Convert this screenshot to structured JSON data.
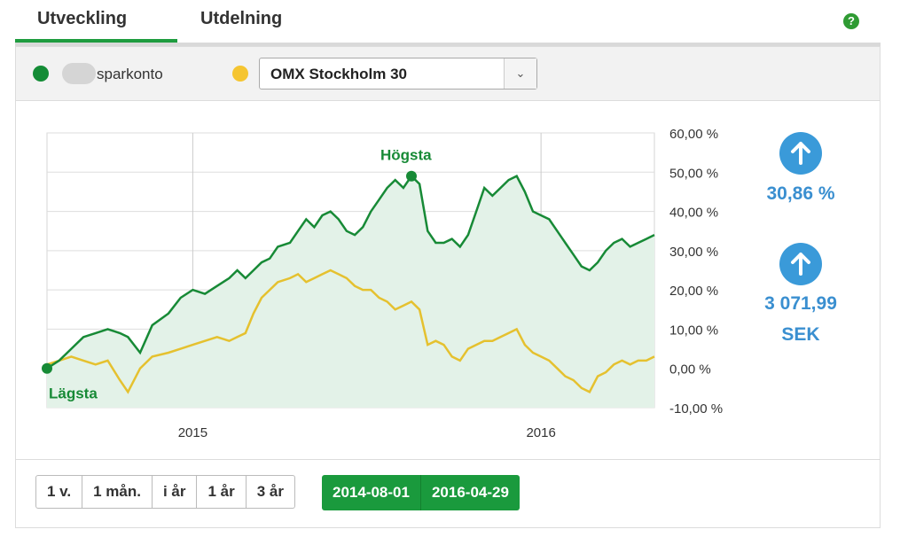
{
  "tabs": [
    {
      "label": "Utveckling",
      "active": true
    },
    {
      "label": "Utdelning",
      "active": false
    }
  ],
  "help_icon": "question-icon",
  "legend": {
    "account_label": "sparkonto",
    "account_color": "#148c36",
    "index_color": "#f5c531",
    "index_select_value": "OMX Stockholm 30"
  },
  "chart_data": {
    "type": "line",
    "x_ticks": [
      "2015",
      "2016"
    ],
    "y_ticks": [
      "60,00 %",
      "50,00 %",
      "40,00 %",
      "30,00 %",
      "20,00 %",
      "10,00 %",
      "0,00 %",
      "-10,00 %"
    ],
    "ylim": [
      -10,
      60
    ],
    "x_range": [
      "2014-08-01",
      "2016-04-29"
    ],
    "annotations": {
      "high": "Högsta",
      "low": "Lägsta"
    },
    "series": [
      {
        "color": "#178a36",
        "fill": "#e3f2e8",
        "values": [
          [
            0,
            0
          ],
          [
            3,
            2
          ],
          [
            6,
            5
          ],
          [
            9,
            8
          ],
          [
            12,
            9
          ],
          [
            15,
            10
          ],
          [
            18,
            9
          ],
          [
            20,
            8
          ],
          [
            23,
            4
          ],
          [
            26,
            11
          ],
          [
            30,
            14
          ],
          [
            33,
            18
          ],
          [
            36,
            20
          ],
          [
            39,
            19
          ],
          [
            42,
            21
          ],
          [
            45,
            23
          ],
          [
            47,
            25
          ],
          [
            49,
            23
          ],
          [
            51,
            25
          ],
          [
            53,
            27
          ],
          [
            55,
            28
          ],
          [
            57,
            31
          ],
          [
            60,
            32
          ],
          [
            62,
            35
          ],
          [
            64,
            38
          ],
          [
            66,
            36
          ],
          [
            68,
            39
          ],
          [
            70,
            40
          ],
          [
            72,
            38
          ],
          [
            74,
            35
          ],
          [
            76,
            34
          ],
          [
            78,
            36
          ],
          [
            80,
            40
          ],
          [
            82,
            43
          ],
          [
            84,
            46
          ],
          [
            86,
            48
          ],
          [
            88,
            46
          ],
          [
            90,
            49
          ],
          [
            92,
            47
          ],
          [
            94,
            35
          ],
          [
            96,
            32
          ],
          [
            98,
            32
          ],
          [
            100,
            33
          ],
          [
            102,
            31
          ],
          [
            104,
            34
          ],
          [
            106,
            40
          ],
          [
            108,
            46
          ],
          [
            110,
            44
          ],
          [
            112,
            46
          ],
          [
            114,
            48
          ],
          [
            116,
            49
          ],
          [
            118,
            45
          ],
          [
            120,
            40
          ],
          [
            122,
            39
          ],
          [
            124,
            38
          ],
          [
            126,
            35
          ],
          [
            128,
            32
          ],
          [
            130,
            29
          ],
          [
            132,
            26
          ],
          [
            134,
            25
          ],
          [
            136,
            27
          ],
          [
            138,
            30
          ],
          [
            140,
            32
          ],
          [
            142,
            33
          ],
          [
            144,
            31
          ],
          [
            146,
            32
          ],
          [
            148,
            33
          ],
          [
            150,
            34
          ]
        ]
      },
      {
        "color": "#e5c12f",
        "values": [
          [
            0,
            1
          ],
          [
            3,
            2
          ],
          [
            6,
            3
          ],
          [
            9,
            2
          ],
          [
            12,
            1
          ],
          [
            15,
            2
          ],
          [
            18,
            -3
          ],
          [
            20,
            -6
          ],
          [
            23,
            0
          ],
          [
            26,
            3
          ],
          [
            30,
            4
          ],
          [
            33,
            5
          ],
          [
            36,
            6
          ],
          [
            39,
            7
          ],
          [
            42,
            8
          ],
          [
            45,
            7
          ],
          [
            47,
            8
          ],
          [
            49,
            9
          ],
          [
            51,
            14
          ],
          [
            53,
            18
          ],
          [
            55,
            20
          ],
          [
            57,
            22
          ],
          [
            60,
            23
          ],
          [
            62,
            24
          ],
          [
            64,
            22
          ],
          [
            66,
            23
          ],
          [
            68,
            24
          ],
          [
            70,
            25
          ],
          [
            72,
            24
          ],
          [
            74,
            23
          ],
          [
            76,
            21
          ],
          [
            78,
            20
          ],
          [
            80,
            20
          ],
          [
            82,
            18
          ],
          [
            84,
            17
          ],
          [
            86,
            15
          ],
          [
            88,
            16
          ],
          [
            90,
            17
          ],
          [
            92,
            15
          ],
          [
            94,
            6
          ],
          [
            96,
            7
          ],
          [
            98,
            6
          ],
          [
            100,
            3
          ],
          [
            102,
            2
          ],
          [
            104,
            5
          ],
          [
            106,
            6
          ],
          [
            108,
            7
          ],
          [
            110,
            7
          ],
          [
            112,
            8
          ],
          [
            114,
            9
          ],
          [
            116,
            10
          ],
          [
            118,
            6
          ],
          [
            120,
            4
          ],
          [
            122,
            3
          ],
          [
            124,
            2
          ],
          [
            126,
            0
          ],
          [
            128,
            -2
          ],
          [
            130,
            -3
          ],
          [
            132,
            -5
          ],
          [
            134,
            -6
          ],
          [
            136,
            -2
          ],
          [
            138,
            -1
          ],
          [
            140,
            1
          ],
          [
            142,
            2
          ],
          [
            144,
            1
          ],
          [
            146,
            2
          ],
          [
            148,
            2
          ],
          [
            150,
            3
          ]
        ]
      }
    ],
    "x_date_marks": {
      "2015": 36,
      "2016": 122
    },
    "grid": true
  },
  "stats": {
    "percent_change": "30,86 %",
    "amount_change_line1": "3 071,99",
    "amount_change_line2": "SEK",
    "icon": "arrow-up-icon"
  },
  "ranges": [
    "1 v.",
    "1 mån.",
    "i år",
    "1 år",
    "3 år"
  ],
  "dates": {
    "from": "2014-08-01",
    "to": "2016-04-29"
  }
}
